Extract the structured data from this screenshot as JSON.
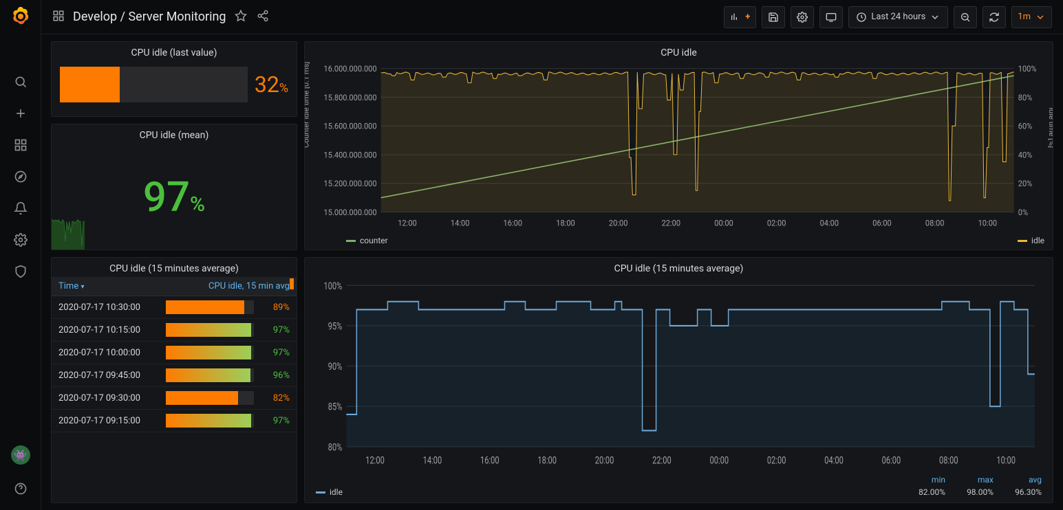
{
  "colors": {
    "bg": "#0b0c0e",
    "panel_bg": "#141619",
    "panel_border": "#212226",
    "text": "#d8d9da",
    "muted": "#9fa1a4",
    "accent_blue": "#5eb4f0",
    "orange": "#ff7b00",
    "green": "#4cbf3c",
    "green_line": "#7eb26d",
    "yellow_line": "#eab839",
    "blue_line": "#6ea8d7",
    "grid": "#2c2f33"
  },
  "header": {
    "breadcrumb": "Develop / Server Monitoring",
    "time_range": "Last 24 hours",
    "refresh": "1m"
  },
  "panel_gauge": {
    "title": "CPU idle (last value)",
    "value": 32,
    "unit": "%",
    "fill_percent": 32,
    "fill_color": "#ff7b00",
    "track_color": "#2a2a2d",
    "value_color": "#ff7b00"
  },
  "panel_bignum": {
    "title": "CPU idle (mean)",
    "value": 97,
    "unit": "%",
    "color": "#4cbf3c",
    "sparkline": {
      "color": "#2c6e2c",
      "fill": "#1e471e",
      "points": [
        98,
        98,
        97,
        98,
        97,
        98,
        97,
        96,
        98,
        97,
        85,
        97,
        92,
        97,
        90,
        97,
        97,
        96,
        97,
        98,
        97,
        97,
        82,
        97,
        97
      ]
    }
  },
  "panel_table": {
    "title": "CPU idle (15 minutes average)",
    "columns": {
      "time": "Time",
      "value": "CPU idle, 15 min avg"
    },
    "rows": [
      {
        "time": "2020-07-17 10:30:00",
        "pct": 89,
        "color": "#ff7b00",
        "grad": [
          "#ff7b00",
          "#ff7b00"
        ]
      },
      {
        "time": "2020-07-17 10:15:00",
        "pct": 97,
        "color": "#4cbf3c",
        "grad": [
          "#ff7b00",
          "#9ccf5a"
        ]
      },
      {
        "time": "2020-07-17 10:00:00",
        "pct": 97,
        "color": "#4cbf3c",
        "grad": [
          "#ff7b00",
          "#9ccf5a"
        ]
      },
      {
        "time": "2020-07-17 09:45:00",
        "pct": 96,
        "color": "#4cbf3c",
        "grad": [
          "#ff7b00",
          "#9ccf5a"
        ]
      },
      {
        "time": "2020-07-17 09:30:00",
        "pct": 82,
        "color": "#ff7b00",
        "grad": [
          "#ff7b00",
          "#ff7b00"
        ]
      },
      {
        "time": "2020-07-17 09:15:00",
        "pct": 97,
        "color": "#4cbf3c",
        "grad": [
          "#ff7b00",
          "#9ccf5a"
        ]
      }
    ]
  },
  "panel_cpu_idle": {
    "title": "CPU idle",
    "y_left_label": "Counter idle time [0.1 ms]",
    "y_right_label": "idle time [%]",
    "y_left": {
      "min": 15000000000,
      "max": 16000000000,
      "step": 200000000,
      "ticks": [
        "15.000.000.000",
        "15.200.000.000",
        "15.400.000.000",
        "15.600.000.000",
        "15.800.000.000",
        "16.000.000.000"
      ]
    },
    "y_right": {
      "min": 0,
      "max": 100,
      "step": 20,
      "ticks": [
        "0%",
        "20%",
        "40%",
        "60%",
        "80%",
        "100%"
      ]
    },
    "x_ticks": [
      "12:00",
      "14:00",
      "16:00",
      "18:00",
      "20:00",
      "22:00",
      "00:00",
      "02:00",
      "04:00",
      "06:00",
      "08:00",
      "10:00"
    ],
    "series": {
      "counter": {
        "label": "counter",
        "color": "#7eb26d",
        "type": "line",
        "points": [
          [
            0,
            15100000000
          ],
          [
            1,
            15950000000
          ]
        ]
      },
      "idle": {
        "label": "idle",
        "color": "#eab839",
        "type": "line",
        "fill_opacity": 0.12,
        "base": 97,
        "dips": [
          [
            0.02,
            95
          ],
          [
            0.05,
            92
          ],
          [
            0.1,
            94
          ],
          [
            0.14,
            90
          ],
          [
            0.18,
            93
          ],
          [
            0.22,
            95
          ],
          [
            0.26,
            92
          ],
          [
            0.395,
            38
          ],
          [
            0.4,
            12
          ],
          [
            0.41,
            72
          ],
          [
            0.455,
            78
          ],
          [
            0.465,
            40
          ],
          [
            0.475,
            85
          ],
          [
            0.5,
            15
          ],
          [
            0.503,
            70
          ],
          [
            0.53,
            90
          ],
          [
            0.57,
            93
          ],
          [
            0.61,
            94
          ],
          [
            0.66,
            92
          ],
          [
            0.72,
            94
          ],
          [
            0.78,
            93
          ],
          [
            0.9,
            8
          ],
          [
            0.905,
            60
          ],
          [
            0.955,
            10
          ],
          [
            0.958,
            45
          ],
          [
            0.985,
            35
          ]
        ]
      }
    },
    "legend": [
      "counter",
      "idle"
    ]
  },
  "panel_cpu_15avg": {
    "title": "CPU idle (15 minutes average)",
    "y": {
      "min": 80,
      "max": 100,
      "step": 5,
      "ticks": [
        "80%",
        "85%",
        "90%",
        "95%",
        "100%"
      ]
    },
    "x_ticks": [
      "12:00",
      "14:00",
      "16:00",
      "18:00",
      "20:00",
      "22:00",
      "00:00",
      "02:00",
      "04:00",
      "06:00",
      "08:00",
      "10:00"
    ],
    "series": {
      "idle": {
        "label": "idle",
        "color": "#6ea8d7",
        "fill": "#1e3a52",
        "fill_opacity": 0.3,
        "points": [
          [
            0.0,
            84
          ],
          [
            0.015,
            84
          ],
          [
            0.015,
            97
          ],
          [
            0.06,
            97
          ],
          [
            0.06,
            98
          ],
          [
            0.105,
            98
          ],
          [
            0.105,
            97
          ],
          [
            0.23,
            97
          ],
          [
            0.23,
            98
          ],
          [
            0.26,
            98
          ],
          [
            0.26,
            97
          ],
          [
            0.305,
            97
          ],
          [
            0.305,
            98
          ],
          [
            0.355,
            98
          ],
          [
            0.355,
            97
          ],
          [
            0.39,
            97
          ],
          [
            0.39,
            98
          ],
          [
            0.4,
            98
          ],
          [
            0.4,
            97
          ],
          [
            0.43,
            97
          ],
          [
            0.43,
            82
          ],
          [
            0.45,
            82
          ],
          [
            0.45,
            97
          ],
          [
            0.47,
            97
          ],
          [
            0.47,
            95
          ],
          [
            0.51,
            95
          ],
          [
            0.51,
            97
          ],
          [
            0.53,
            97
          ],
          [
            0.53,
            95
          ],
          [
            0.555,
            95
          ],
          [
            0.555,
            97
          ],
          [
            0.865,
            97
          ],
          [
            0.865,
            98
          ],
          [
            0.905,
            98
          ],
          [
            0.905,
            97
          ],
          [
            0.935,
            97
          ],
          [
            0.935,
            85
          ],
          [
            0.95,
            85
          ],
          [
            0.95,
            98
          ],
          [
            0.97,
            98
          ],
          [
            0.97,
            97
          ],
          [
            0.99,
            97
          ],
          [
            0.99,
            89
          ],
          [
            1.0,
            89
          ]
        ]
      }
    },
    "stats": {
      "headers": [
        "min",
        "max",
        "avg"
      ],
      "values": [
        "82.00%",
        "98.00%",
        "96.30%"
      ]
    },
    "legend": [
      "idle"
    ]
  }
}
